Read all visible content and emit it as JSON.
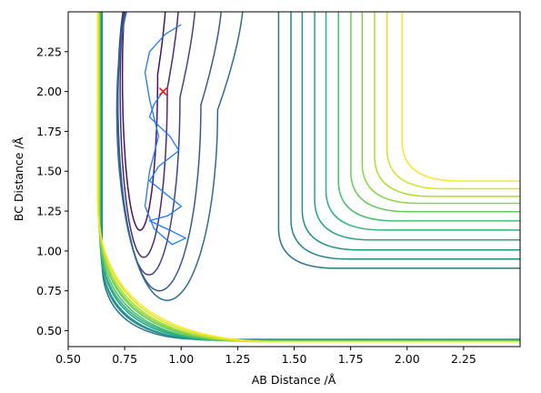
{
  "chart_data": {
    "type": "contour",
    "xlabel": "AB Distance /Å",
    "ylabel": "BC Distance /Å",
    "xlim": [
      0.5,
      2.5
    ],
    "ylim": [
      0.4,
      2.5
    ],
    "xticks": [
      "0.50",
      "0.75",
      "1.00",
      "1.25",
      "1.50",
      "1.75",
      "2.00",
      "2.25"
    ],
    "yticks": [
      "0.50",
      "0.75",
      "1.00",
      "1.25",
      "1.50",
      "1.75",
      "2.00",
      "2.25"
    ],
    "colormap": [
      "#440154",
      "#482878",
      "#3e4a89",
      "#31688e",
      "#26828e",
      "#1f9e89",
      "#35b779",
      "#6ece58",
      "#b5de2b",
      "#fde725"
    ],
    "grid": false,
    "contour_levels": [
      {
        "rx": 0.9,
        "ry": 1.25,
        "x0": 0.68,
        "y0": 0.47,
        "z": 0.05
      },
      {
        "rx": 0.98,
        "ry": 1.08,
        "x0": 0.67,
        "y0": 0.46,
        "z": 0.12
      },
      {
        "rx": 1.08,
        "ry": 0.97,
        "x0": 0.66,
        "y0": 0.46,
        "z": 0.2
      },
      {
        "rx": 1.22,
        "ry": 0.87,
        "x0": 0.66,
        "y0": 0.45,
        "z": 0.28
      },
      {
        "rx": 1.34,
        "ry": 0.81,
        "x0": 0.655,
        "y0": 0.45,
        "z": 0.34
      },
      {
        "rx": 1.42,
        "ry": 0.93,
        "x0": 0.65,
        "y0": 0.445,
        "z": 0.4
      },
      {
        "rx": 1.52,
        "ry": 1.05,
        "x0": 0.65,
        "y0": 0.445,
        "z": 0.46
      },
      {
        "rx": 1.62,
        "ry": 1.18,
        "x0": 0.645,
        "y0": 0.44,
        "z": 0.52
      },
      {
        "rx": 1.72,
        "ry": 1.31,
        "x0": 0.645,
        "y0": 0.44,
        "z": 0.58
      },
      {
        "rx": 1.82,
        "ry": 1.44,
        "x0": 0.64,
        "y0": 0.44,
        "z": 0.64
      },
      {
        "rx": 1.92,
        "ry": 1.57,
        "x0": 0.64,
        "y0": 0.435,
        "z": 0.7
      },
      {
        "rx": 2.02,
        "ry": 1.69,
        "x0": 0.64,
        "y0": 0.435,
        "z": 0.76
      },
      {
        "rx": 2.12,
        "ry": 1.8,
        "x0": 0.635,
        "y0": 0.435,
        "z": 0.82
      },
      {
        "rx": 2.22,
        "ry": 1.9,
        "x0": 0.635,
        "y0": 0.43,
        "z": 0.88
      },
      {
        "rx": 2.32,
        "ry": 2.0,
        "x0": 0.635,
        "y0": 0.43,
        "z": 0.94
      },
      {
        "rx": 2.45,
        "ry": 2.1,
        "x0": 0.63,
        "y0": 0.43,
        "z": 1.0
      }
    ],
    "trajectory": {
      "color": "#1f77ff",
      "points": [
        [
          0.92,
          2.0
        ],
        [
          0.88,
          1.92
        ],
        [
          0.86,
          1.84
        ],
        [
          0.95,
          1.72
        ],
        [
          0.99,
          1.63
        ],
        [
          0.9,
          1.53
        ],
        [
          0.86,
          1.44
        ],
        [
          0.93,
          1.36
        ],
        [
          1.0,
          1.28
        ],
        [
          0.94,
          1.22
        ],
        [
          0.86,
          1.19
        ],
        [
          0.95,
          1.13
        ],
        [
          1.02,
          1.08
        ],
        [
          0.96,
          1.04
        ],
        [
          0.88,
          1.14
        ],
        [
          0.84,
          1.28
        ],
        [
          0.86,
          1.5
        ],
        [
          0.9,
          1.72
        ],
        [
          0.86,
          1.95
        ],
        [
          0.84,
          2.12
        ],
        [
          0.86,
          2.25
        ],
        [
          0.93,
          2.36
        ],
        [
          1.0,
          2.42
        ]
      ]
    },
    "marker": {
      "x": 0.92,
      "y": 2.0,
      "symbol": "x",
      "color": "#ff0000"
    }
  }
}
